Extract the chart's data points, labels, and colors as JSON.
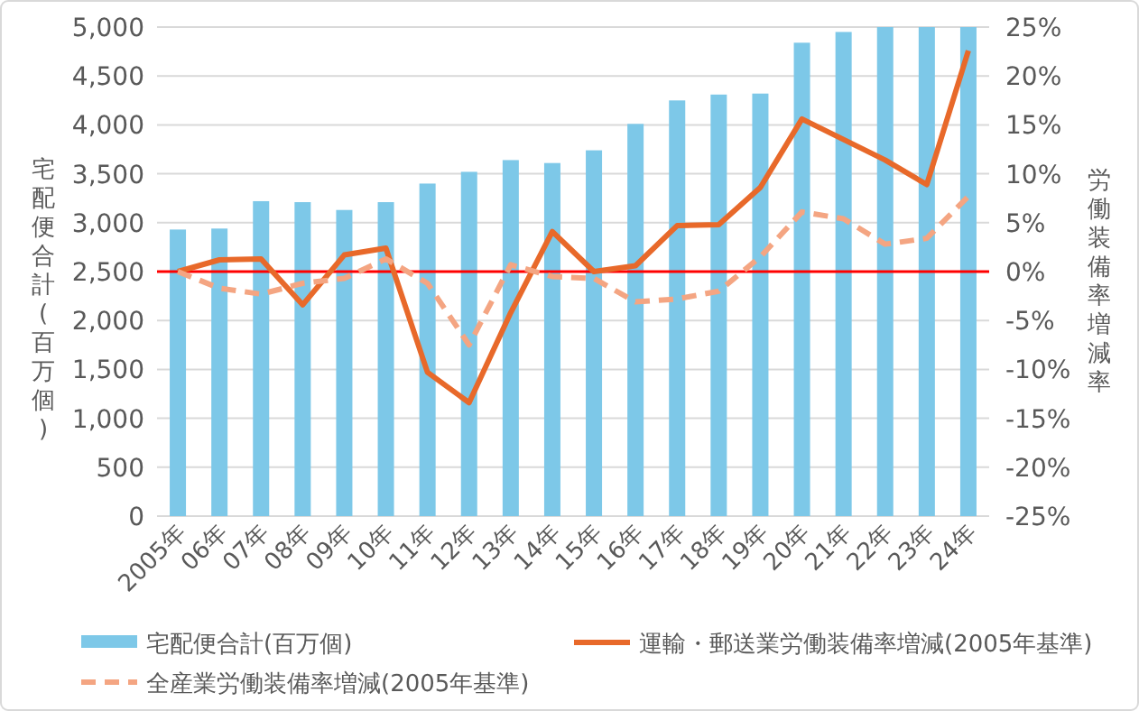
{
  "chart_data": {
    "type": "bar",
    "categories": [
      "2005年",
      "06年",
      "07年",
      "08年",
      "09年",
      "10年",
      "11年",
      "12年",
      "13年",
      "14年",
      "15年",
      "16年",
      "17年",
      "18年",
      "19年",
      "20年",
      "21年",
      "22年",
      "23年",
      "24年"
    ],
    "series": [
      {
        "name": "宅配便合計(百万個)",
        "color": "#7dc8e8",
        "values": [
          2930,
          2940,
          3220,
          3210,
          3130,
          3210,
          3400,
          3520,
          3640,
          3610,
          3740,
          4010,
          4250,
          4310,
          4320,
          4840,
          4950,
          5000,
          5000,
          5000
        ]
      },
      {
        "name": "運輸・郵送業労働装備率増減(2005年基準)",
        "type": "line",
        "axis": "y2",
        "color": "#e8692a",
        "line_style": "solid",
        "values": [
          0,
          1.2,
          1.3,
          -3.4,
          1.7,
          2.4,
          -10.3,
          -13.4,
          -4.2,
          4.1,
          0,
          0.6,
          4.7,
          4.8,
          8.6,
          15.6,
          13.5,
          11.4,
          8.9,
          22.6
        ]
      },
      {
        "name": "全産業労働装備率増減(2005年基準)",
        "type": "line",
        "axis": "y2",
        "color": "#f4a582",
        "line_style": "dashed",
        "values": [
          0,
          -1.7,
          -2.3,
          -1.2,
          -0.7,
          1.3,
          -1.2,
          -7.5,
          0.7,
          -0.5,
          -0.7,
          -3.1,
          -2.8,
          -2.0,
          1.5,
          6.1,
          5.4,
          2.8,
          3.4,
          7.7
        ]
      }
    ],
    "ylabel": "宅配便合計(百万個)",
    "y2label": "労働装備率増減率",
    "ylim": [
      0,
      5000
    ],
    "yticks": [
      0,
      500,
      {
        "value": 1000,
        "label": "1,000"
      },
      {
        "value": 1500,
        "label": "1,500"
      },
      {
        "value": 2000,
        "label": "2,000"
      },
      {
        "value": 2500,
        "label": "2,500"
      },
      {
        "value": 3000,
        "label": "3,000"
      },
      {
        "value": 3500,
        "label": "3,500"
      },
      {
        "value": 4000,
        "label": "4,000"
      },
      {
        "value": 4500,
        "label": "4,500"
      },
      {
        "value": 5000,
        "label": "5,000"
      }
    ],
    "y2lim": [
      -25,
      25
    ],
    "y2ticks": [
      {
        "value": -25,
        "label": "-25%"
      },
      {
        "value": -20,
        "label": "-20%"
      },
      {
        "value": -15,
        "label": "-15%"
      },
      {
        "value": -10,
        "label": "-10%"
      },
      {
        "value": -5,
        "label": "-5%"
      },
      {
        "value": 0,
        "label": "0%"
      },
      {
        "value": 5,
        "label": "5%"
      },
      {
        "value": 10,
        "label": "10%"
      },
      {
        "value": 15,
        "label": "15%"
      },
      {
        "value": 20,
        "label": "20%"
      },
      {
        "value": 25,
        "label": "25%"
      }
    ],
    "ref_lines": [
      {
        "axis": "y2",
        "value": 0,
        "color": "#ff0000"
      }
    ],
    "grid": "y",
    "legend": "bottom"
  }
}
